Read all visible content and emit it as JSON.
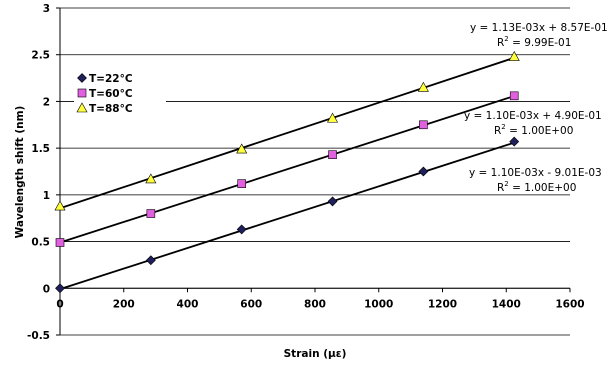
{
  "chart_data": {
    "type": "scatter",
    "xlabel": "Strain (με)",
    "ylabel": "Wavelength shift (nm)",
    "xlim": [
      0,
      1600
    ],
    "ylim": [
      -0.5,
      3
    ],
    "xticks": [
      0,
      200,
      400,
      600,
      800,
      1000,
      1200,
      1400,
      1600
    ],
    "yticks": [
      -0.5,
      0,
      0.5,
      1,
      1.5,
      2,
      2.5,
      3
    ],
    "grid": "horizontal major",
    "legend_position": "left",
    "series": [
      {
        "name": "T=22°C",
        "marker": "diamond",
        "color": "#1f1f5c",
        "x": [
          0,
          285,
          570,
          855,
          1140,
          1425
        ],
        "y": [
          0.0,
          0.3,
          0.63,
          0.93,
          1.25,
          1.57
        ],
        "trendline": {
          "slope": 0.0011,
          "intercept": -0.00901
        },
        "equation": "y = 1.10E-03x - 9.01E-03",
        "r2_label": "R",
        "r2_value": " = 1.00E+00"
      },
      {
        "name": "T=60°C",
        "marker": "square",
        "color": "#e060e0",
        "x": [
          0,
          285,
          570,
          855,
          1140,
          1425
        ],
        "y": [
          0.49,
          0.8,
          1.12,
          1.43,
          1.75,
          2.06
        ],
        "trendline": {
          "slope": 0.0011,
          "intercept": 0.49
        },
        "equation": "y = 1.10E-03x + 4.90E-01",
        "r2_label": "R",
        "r2_value": " = 1.00E+00"
      },
      {
        "name": "T=88°C",
        "marker": "triangle",
        "color": "#ffff40",
        "x": [
          0,
          285,
          570,
          855,
          1140,
          1425
        ],
        "y": [
          0.88,
          1.17,
          1.49,
          1.82,
          2.15,
          2.48
        ],
        "trendline": {
          "slope": 0.00113,
          "intercept": 0.857
        },
        "equation": "y = 1.13E-03x + 8.57E-01",
        "r2_label": "R",
        "r2_value": " = 9.99E-01"
      }
    ]
  }
}
